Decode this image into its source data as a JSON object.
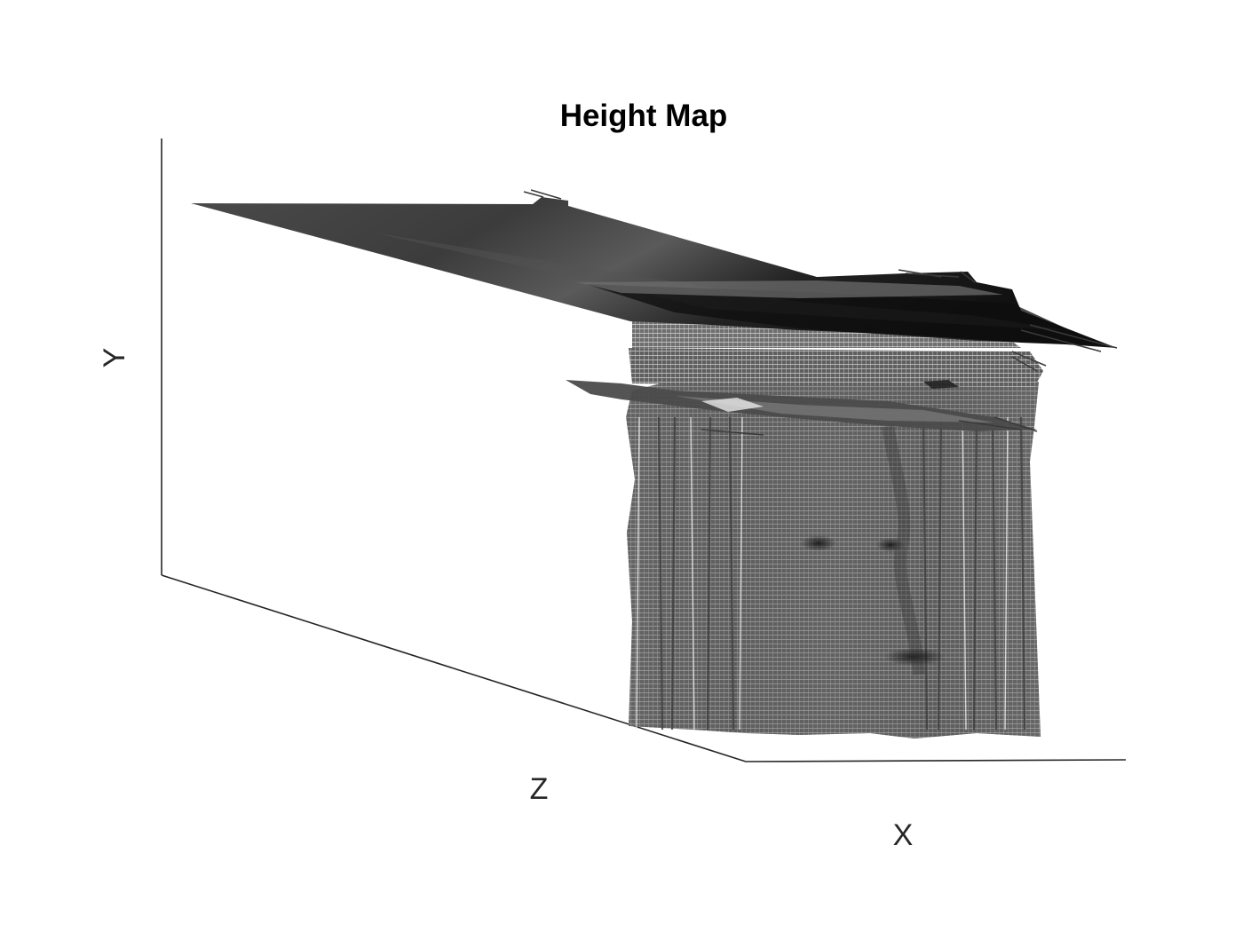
{
  "chart_data": {
    "type": "surface",
    "title": "Height Map",
    "xlabel": "X",
    "ylabel": "Y",
    "zlabel": "Z",
    "colormap": "gray",
    "grid": false,
    "ticks": false,
    "mesh_color": "#dddddd",
    "surface_dark": "#111111",
    "surface_light": "#9a9a9a"
  }
}
